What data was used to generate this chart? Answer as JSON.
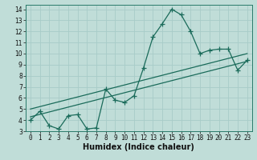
{
  "xlabel": "Humidex (Indice chaleur)",
  "bg_color": "#c0ddd8",
  "line_color": "#1a6b5a",
  "grid_color": "#a8ccc8",
  "xlim": [
    -0.5,
    23.5
  ],
  "ylim": [
    3,
    14.4
  ],
  "xticks": [
    0,
    1,
    2,
    3,
    4,
    5,
    6,
    7,
    8,
    9,
    10,
    11,
    12,
    13,
    14,
    15,
    16,
    17,
    18,
    19,
    20,
    21,
    22,
    23
  ],
  "yticks": [
    3,
    4,
    5,
    6,
    7,
    8,
    9,
    10,
    11,
    12,
    13,
    14
  ],
  "line1_x": [
    0,
    1,
    2,
    3,
    4,
    5,
    6,
    7,
    8,
    9,
    10,
    11,
    12,
    13,
    14,
    15,
    16,
    17,
    18,
    19,
    20,
    21,
    22,
    23
  ],
  "line1_y": [
    4.0,
    4.8,
    3.5,
    3.2,
    4.4,
    4.5,
    3.2,
    3.3,
    6.8,
    5.8,
    5.6,
    6.2,
    8.7,
    11.5,
    12.7,
    14.0,
    13.5,
    12.0,
    10.0,
    10.3,
    10.4,
    10.4,
    8.5,
    9.4
  ],
  "line2_x": [
    0,
    23
  ],
  "line2_y": [
    4.3,
    9.3
  ],
  "line3_x": [
    0,
    23
  ],
  "line3_y": [
    5.0,
    10.0
  ],
  "marker_size": 4,
  "tick_fontsize": 5.5,
  "xlabel_fontsize": 7,
  "linewidth": 0.9
}
